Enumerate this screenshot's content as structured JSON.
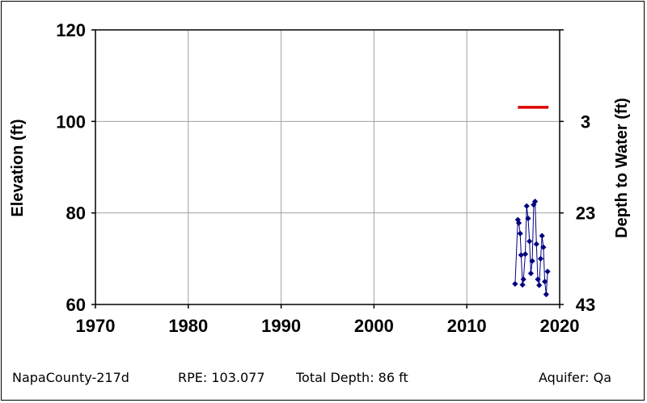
{
  "chart_data": {
    "type": "scatter",
    "x_ticks": [
      "1970",
      "1980",
      "1990",
      "2000",
      "2010",
      "2020"
    ],
    "y_left_ticks": [
      "120",
      "100",
      "80",
      "60"
    ],
    "y_right_ticks": [
      "3",
      "23",
      "43"
    ],
    "xlim": [
      1970,
      2020
    ],
    "ylim": [
      60,
      120
    ],
    "ylabel": "Elevation (ft)",
    "ylabel_right": "Depth to Water (ft)",
    "grid": true,
    "reference_line": {
      "y": 103.077,
      "x_start": 2015.5,
      "x_end": 2018.8,
      "color": "#dd0000"
    },
    "series": [
      {
        "color": "#000080",
        "points": [
          [
            2015.2,
            64.5
          ],
          [
            2015.5,
            78.5
          ],
          [
            2015.6,
            77.8
          ],
          [
            2015.75,
            75.5
          ],
          [
            2015.85,
            70.8
          ],
          [
            2016.0,
            64.3
          ],
          [
            2016.1,
            65.5
          ],
          [
            2016.3,
            71.0
          ],
          [
            2016.45,
            81.5
          ],
          [
            2016.6,
            78.8
          ],
          [
            2016.75,
            73.8
          ],
          [
            2016.9,
            66.8
          ],
          [
            2017.05,
            69.5
          ],
          [
            2017.2,
            81.8
          ],
          [
            2017.35,
            82.5
          ],
          [
            2017.5,
            73.2
          ],
          [
            2017.65,
            65.5
          ],
          [
            2017.8,
            64.2
          ],
          [
            2017.95,
            70.0
          ],
          [
            2018.1,
            75.0
          ],
          [
            2018.25,
            72.5
          ],
          [
            2018.4,
            65.0
          ],
          [
            2018.55,
            62.2
          ],
          [
            2018.7,
            67.2
          ]
        ]
      }
    ]
  },
  "footer": {
    "well_id": "NapaCounty-217d",
    "rpe": "RPE: 103.077",
    "total_depth": "Total Depth: 86 ft",
    "aquifer": "Aquifer: Qa"
  }
}
